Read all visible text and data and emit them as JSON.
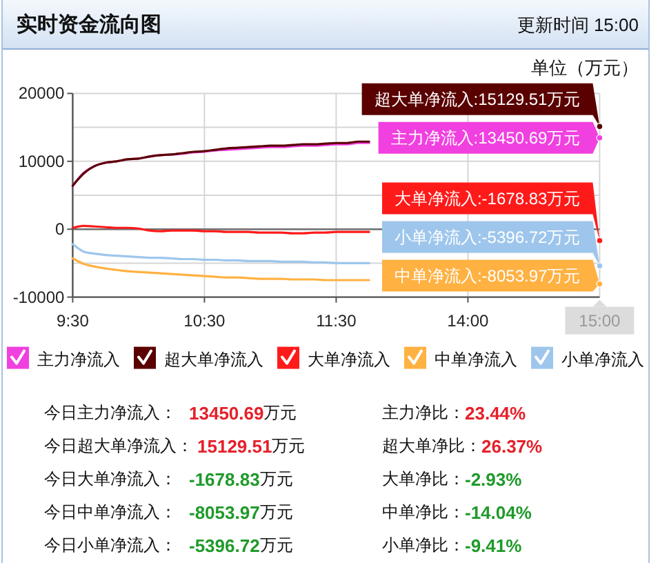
{
  "chart_data": [
    {
      "type": "line",
      "title": "实时资金流向图",
      "subtitle": "更新时间 15:00",
      "ylabel": "单位（万元）",
      "categories": [
        "9:30",
        null,
        null,
        null,
        null,
        null,
        null,
        null,
        null,
        null,
        null,
        null,
        "10:30",
        null,
        null,
        null,
        null,
        null,
        null,
        null,
        null,
        null,
        null,
        null,
        "11:30",
        null,
        null,
        null,
        null,
        null,
        null,
        null,
        null,
        null,
        null,
        null,
        "14:00",
        null,
        null,
        null,
        null,
        null,
        null,
        null,
        null,
        null,
        null,
        null,
        "15:00"
      ],
      "ylim": [
        -10000,
        20000
      ],
      "yticks": [
        -10000,
        {
          "value": -5000,
          "label": null
        },
        0,
        {
          "value": 5000,
          "label": null
        },
        10000,
        {
          "value": 15000,
          "label": null
        },
        20000
      ],
      "grid": true,
      "legend": "bottom",
      "ref_lines": [
        {
          "axis": "y",
          "value": 0,
          "color": "#6e6e6e"
        }
      ],
      "series": [
        {
          "name": "主力净流入",
          "color": "#f040e0",
          "values": [
            6400,
            8300,
            9300,
            9800,
            10000,
            10300,
            10400,
            10700,
            10900,
            11000,
            11100,
            11300,
            11400,
            11600,
            11700,
            11800,
            11900,
            12000,
            12100,
            12100,
            12200,
            12300,
            12300,
            12400,
            12500,
            12500,
            12700,
            12700,
            null,
            null,
            null,
            null,
            null,
            null,
            null,
            null,
            null,
            null,
            null,
            null,
            null,
            null,
            null,
            null,
            null,
            null,
            null,
            null,
            13450.69
          ]
        },
        {
          "name": "超大单净流入",
          "color": "#5a0000",
          "values": [
            6400,
            8200,
            9300,
            9800,
            10000,
            10300,
            10400,
            10700,
            10900,
            11000,
            11200,
            11400,
            11500,
            11700,
            11900,
            12000,
            12100,
            12200,
            12300,
            12300,
            12400,
            12500,
            12500,
            12600,
            12700,
            12700,
            12900,
            12900,
            null,
            null,
            null,
            null,
            null,
            null,
            null,
            null,
            null,
            null,
            null,
            null,
            null,
            null,
            null,
            null,
            null,
            null,
            null,
            null,
            15129.51
          ]
        },
        {
          "name": "大单净流入",
          "color": "#ff1a1a",
          "values": [
            200,
            500,
            400,
            300,
            200,
            200,
            100,
            -200,
            -300,
            -200,
            -200,
            -200,
            -300,
            -300,
            -400,
            -400,
            -400,
            -500,
            -500,
            -500,
            -600,
            -600,
            -500,
            -500,
            -400,
            -400,
            -400,
            -400,
            null,
            null,
            null,
            null,
            null,
            null,
            null,
            null,
            null,
            null,
            null,
            null,
            null,
            null,
            null,
            null,
            null,
            null,
            null,
            null,
            -1678.83
          ]
        },
        {
          "name": "中单净流入",
          "color": "#ffb142",
          "values": [
            -4300,
            -5100,
            -5500,
            -5800,
            -6000,
            -6200,
            -6300,
            -6400,
            -6500,
            -6600,
            -6700,
            -6800,
            -6900,
            -7000,
            -7100,
            -7100,
            -7200,
            -7300,
            -7300,
            -7300,
            -7400,
            -7400,
            -7400,
            -7500,
            -7500,
            -7500,
            -7500,
            -7500,
            null,
            null,
            null,
            null,
            null,
            null,
            null,
            null,
            null,
            null,
            null,
            null,
            null,
            null,
            null,
            null,
            null,
            null,
            null,
            null,
            -8053.97
          ]
        },
        {
          "name": "小单净流入",
          "color": "#9ec6ec",
          "values": [
            -2200,
            -3300,
            -3600,
            -3800,
            -3900,
            -4000,
            -4100,
            -4200,
            -4200,
            -4300,
            -4400,
            -4400,
            -4500,
            -4500,
            -4600,
            -4600,
            -4700,
            -4700,
            -4700,
            -4800,
            -4800,
            -4800,
            -4900,
            -4900,
            -5000,
            -5000,
            -5000,
            -5000,
            null,
            null,
            null,
            null,
            null,
            null,
            null,
            null,
            null,
            null,
            null,
            null,
            null,
            null,
            null,
            null,
            null,
            null,
            null,
            null,
            -5396.72
          ]
        }
      ],
      "annotations": [
        {
          "text": "主力净流入:13450.69万元",
          "x": "15:00",
          "y": 13450.69
        },
        {
          "text": "超大单净流入:15129.51万元",
          "x": "15:00",
          "y": 15129.51
        },
        {
          "text": "大单净流入:-1678.83万元",
          "x": "15:00",
          "y": -1678.83
        },
        {
          "text": "中单净流入:-8053.97万元",
          "x": "15:00",
          "y": -8053.97
        },
        {
          "text": "小单净流入:-5396.72万元",
          "x": "15:00",
          "y": -5396.72
        }
      ]
    },
    {
      "type": "other",
      "annotations": [
        "今日主力净流入：",
        "13450.69万元",
        "主力净比：23.44%",
        "今日超大单净流入：",
        "15129.51万元",
        "超大单净比：26.37%",
        "今日大单净流入：",
        "-1678.83万元",
        "大单净比：-2.93%",
        "今日中单净流入：",
        "-8053.97万元",
        "中单净比：-14.04%",
        "今日小单净流入：",
        "-5396.72万元",
        "小单净比：-9.41%"
      ]
    }
  ]
}
